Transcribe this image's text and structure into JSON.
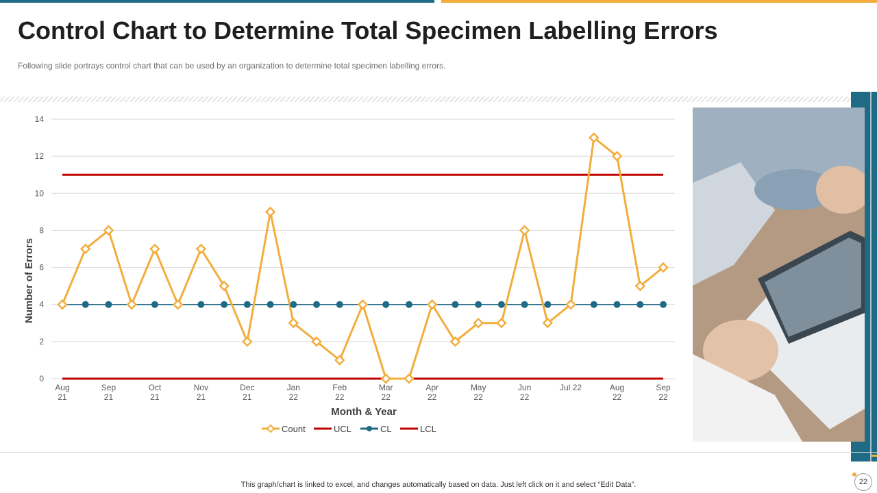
{
  "page": {
    "title": "Control Chart to Determine Total Specimen Labelling Errors",
    "subtitle": "Following slide portrays control chart that can be used by an organization to determine total specimen labelling errors.",
    "footnote": "This graph/chart is linked to excel,  and changes automatically based on data. Just left click on it and select “Edit Data”.",
    "page_number": "22"
  },
  "photo": {
    "icon": "tablet-business-photo"
  },
  "colors": {
    "count": "#f2ad3c",
    "ucl": "#c00000",
    "cl": "#1f6a85",
    "lcl": "#c00000",
    "grid": "#d9d9d9",
    "accent_blue": "#1f6a85",
    "accent_orange": "#f2ad3c"
  },
  "chart_data": {
    "type": "line",
    "xlabel": "Month & Year",
    "ylabel": "Number of Errors",
    "ylim": [
      0,
      14
    ],
    "yticks": [
      0,
      2,
      4,
      6,
      8,
      10,
      12,
      14
    ],
    "x_tick_labels": [
      {
        "index": 0,
        "line1": "Aug",
        "line2": "21"
      },
      {
        "index": 2,
        "line1": "Sep",
        "line2": "21"
      },
      {
        "index": 4,
        "line1": "Oct",
        "line2": "21"
      },
      {
        "index": 6,
        "line1": "Nov",
        "line2": "21"
      },
      {
        "index": 8,
        "line1": "Dec",
        "line2": "21"
      },
      {
        "index": 10,
        "line1": "Jan",
        "line2": "22"
      },
      {
        "index": 12,
        "line1": "Feb",
        "line2": "22"
      },
      {
        "index": 14,
        "line1": "Mar",
        "line2": "22"
      },
      {
        "index": 16,
        "line1": "Apr",
        "line2": "22"
      },
      {
        "index": 18,
        "line1": "May",
        "line2": "22"
      },
      {
        "index": 20,
        "line1": "Jun",
        "line2": "22"
      },
      {
        "index": 22,
        "line1": "Jul 22",
        "line2": ""
      },
      {
        "index": 24,
        "line1": "Aug",
        "line2": "22"
      },
      {
        "index": 26,
        "line1": "Sep",
        "line2": "22"
      }
    ],
    "point_count": 27,
    "series": [
      {
        "name": "Count",
        "values": [
          4,
          7,
          8,
          4,
          7,
          4,
          7,
          5,
          2,
          9,
          3,
          2,
          1,
          4,
          0,
          0,
          4,
          2,
          3,
          3,
          8,
          3,
          4,
          13,
          12,
          5,
          6
        ]
      },
      {
        "name": "UCL",
        "values": [
          11,
          11,
          11,
          11,
          11,
          11,
          11,
          11,
          11,
          11,
          11,
          11,
          11,
          11,
          11,
          11,
          11,
          11,
          11,
          11,
          11,
          11,
          11,
          11,
          11,
          11,
          11
        ]
      },
      {
        "name": "CL",
        "values": [
          4,
          4,
          4,
          4,
          4,
          4,
          4,
          4,
          4,
          4,
          4,
          4,
          4,
          4,
          4,
          4,
          4,
          4,
          4,
          4,
          4,
          4,
          4,
          4,
          4,
          4,
          4
        ]
      },
      {
        "name": "LCL",
        "values": [
          0,
          0,
          0,
          0,
          0,
          0,
          0,
          0,
          0,
          0,
          0,
          0,
          0,
          0,
          0,
          0,
          0,
          0,
          0,
          0,
          0,
          0,
          0,
          0,
          0,
          0,
          0
        ]
      }
    ],
    "legend": [
      "Count",
      "UCL",
      "CL",
      "LCL"
    ],
    "legend_position": "bottom",
    "grid": true
  }
}
